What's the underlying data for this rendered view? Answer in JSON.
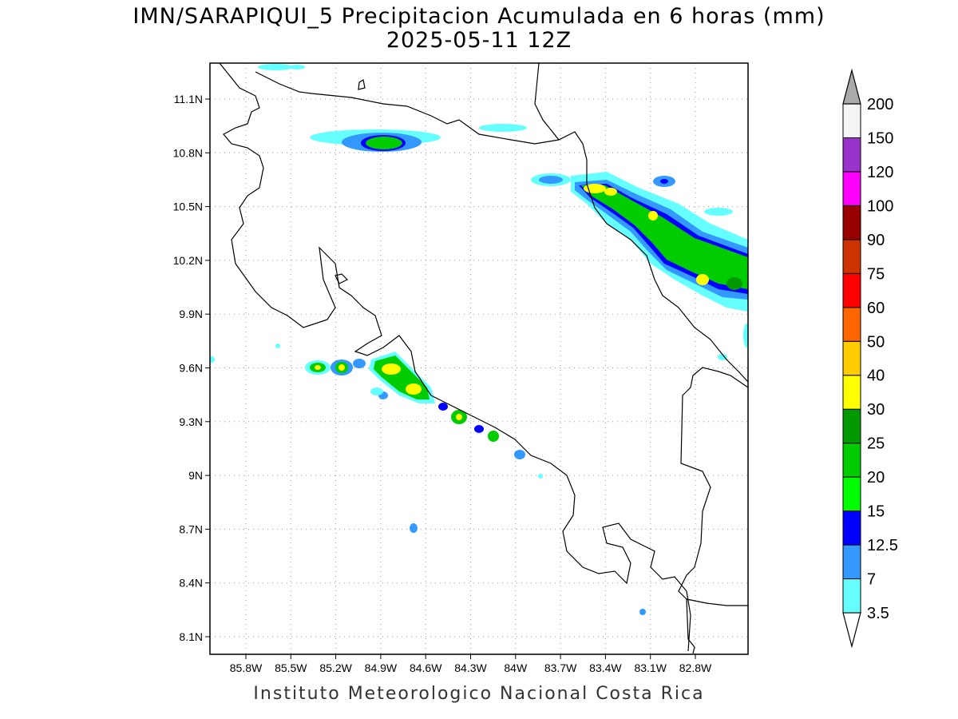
{
  "title_line1": "IMN/SARAPIQUI_5 Precipitacion Acumulada en 6 horas (mm)",
  "title_line2": "2025-05-11 12Z",
  "footer": "Instituto Meteorologico Nacional Costa Rica",
  "map": {
    "lon_ticks": [
      "85.8W",
      "85.5W",
      "85.2W",
      "84.9W",
      "84.6W",
      "84.3W",
      "84W",
      "83.7W",
      "83.4W",
      "83.1W",
      "82.8W"
    ],
    "lat_ticks": [
      "11.1N",
      "10.8N",
      "10.5N",
      "10.2N",
      "9.9N",
      "9.6N",
      "9.3N",
      "9N",
      "8.7N",
      "8.4N",
      "8.1N"
    ]
  },
  "colorbar": {
    "levels": [
      "3.5",
      "7",
      "12.5",
      "15",
      "20",
      "25",
      "30",
      "40",
      "50",
      "60",
      "75",
      "90",
      "100",
      "120",
      "150",
      "200"
    ],
    "colors": [
      "#66ffff",
      "#3399ff",
      "#0000ff",
      "#00ff00",
      "#00cc00",
      "#009900",
      "#ffff00",
      "#ffcc00",
      "#ff6600",
      "#ff0000",
      "#cc3300",
      "#990000",
      "#ff00ff",
      "#9933cc",
      "#f5f5f5",
      "#aaaaaa"
    ]
  }
}
